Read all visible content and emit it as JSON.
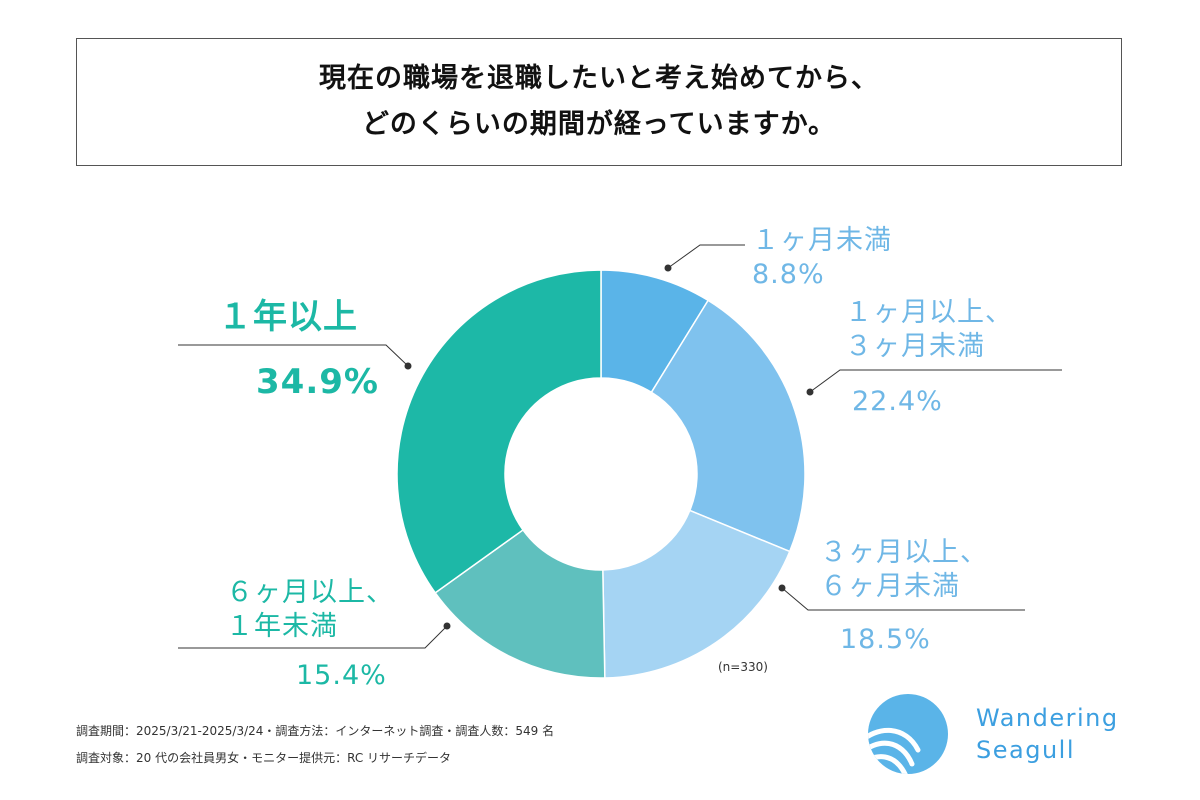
{
  "title": {
    "line1": "現在の職場を退職したいと考え始めてから、",
    "line2": "どのくらいの期間が経っていますか。"
  },
  "chart_data": {
    "type": "pie",
    "donut": true,
    "sample_note": "(n=330)",
    "slices": [
      {
        "label": "１ヶ月未満",
        "label_lines": [
          "１ヶ月未満"
        ],
        "value": 8.8,
        "value_label": "8.8%",
        "color": "#5ab4e8"
      },
      {
        "label": "１ヶ月以上、３ヶ月未満",
        "label_lines": [
          "１ヶ月以上、",
          "３ヶ月未満"
        ],
        "value": 22.4,
        "value_label": "22.4%",
        "color": "#7fc2ee"
      },
      {
        "label": "３ヶ月以上、６ヶ月未満",
        "label_lines": [
          "３ヶ月以上、",
          "６ヶ月未満"
        ],
        "value": 18.5,
        "value_label": "18.5%",
        "color": "#a5d4f3"
      },
      {
        "label": "６ヶ月以上、１年未満",
        "label_lines": [
          "６ヶ月以上、",
          "１年未満"
        ],
        "value": 15.4,
        "value_label": "15.4%",
        "color": "#5fc0be"
      },
      {
        "label": "１年以上",
        "label_lines": [
          "１年以上"
        ],
        "value": 34.9,
        "value_label": "34.9%",
        "color": "#1db8a7"
      }
    ]
  },
  "footer": {
    "line1": "調査期間：2025/3/21-2025/3/24・調査方法：インターネット調査・調査人数：549 名",
    "line2": "調査対象：20 代の会社員男女・モニター提供元：RC リサーチデータ"
  },
  "logo": {
    "line1": "Wandering",
    "line2": "Seagull",
    "color": "#3c9fe0"
  }
}
